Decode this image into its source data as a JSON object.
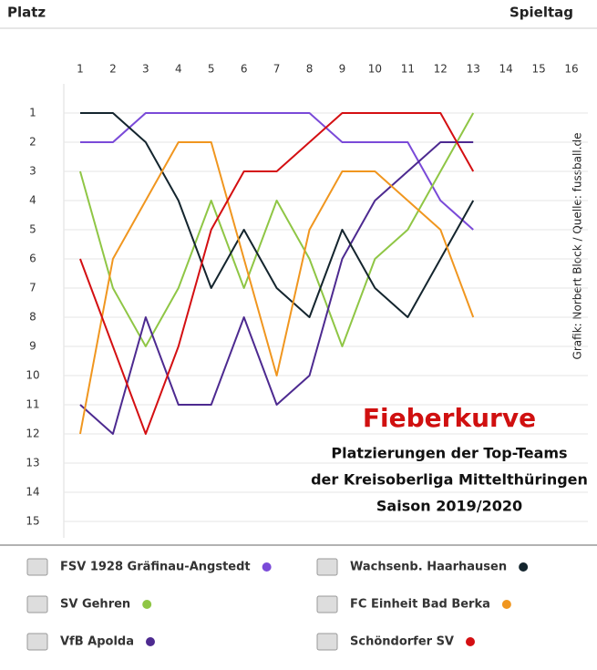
{
  "chart_data": {
    "type": "line",
    "title": "Fieberkurve",
    "subtitle": [
      "Platzierungen der Top-Teams",
      "der Kreisoberliga Mittelthüringen",
      "Saison 2019/2020"
    ],
    "xlabel": "Spieltag",
    "ylabel": "Platz",
    "credit": "Grafik: Norbert Block / Quelle: fussball.de",
    "x": [
      1,
      2,
      3,
      4,
      5,
      6,
      7,
      8,
      9,
      10,
      11,
      12,
      13
    ],
    "xlim": [
      0.5,
      16.5
    ],
    "xticks": [
      1,
      2,
      3,
      4,
      5,
      6,
      7,
      8,
      9,
      10,
      11,
      12,
      13,
      14,
      15,
      16
    ],
    "ylim": [
      0,
      15.5
    ],
    "y_inverted": true,
    "yticks": [
      1,
      2,
      3,
      4,
      5,
      6,
      7,
      8,
      9,
      10,
      11,
      12,
      13,
      14,
      15
    ],
    "grid": true,
    "series": [
      {
        "name": "FSV 1928 Gräfinau-Angstedt",
        "color": "#7a4ad8",
        "values": [
          2,
          2,
          1,
          1,
          1,
          1,
          1,
          1,
          2,
          2,
          2,
          4,
          5
        ]
      },
      {
        "name": "SV Gehren",
        "color": "#8fc645",
        "values": [
          3,
          7,
          9,
          7,
          4,
          7,
          4,
          6,
          9,
          6,
          5,
          3,
          1
        ]
      },
      {
        "name": "VfB Apolda",
        "color": "#4d2a90",
        "values": [
          11,
          12,
          8,
          11,
          11,
          8,
          11,
          10,
          6,
          4,
          3,
          2,
          2
        ]
      },
      {
        "name": "Wachsenb. Haarhausen",
        "color": "#14252e",
        "values": [
          1,
          1,
          2,
          4,
          7,
          5,
          7,
          8,
          5,
          7,
          8,
          6,
          4
        ]
      },
      {
        "name": "FC Einheit Bad Berka",
        "color": "#f0961f",
        "values": [
          12,
          6,
          4,
          2,
          2,
          6,
          10,
          5,
          3,
          3,
          4,
          5,
          8
        ]
      },
      {
        "name": "Schöndorfer SV",
        "color": "#d40f12",
        "values": [
          6,
          9,
          12,
          9,
          5,
          3,
          3,
          2,
          1,
          1,
          1,
          1,
          3
        ]
      }
    ]
  }
}
